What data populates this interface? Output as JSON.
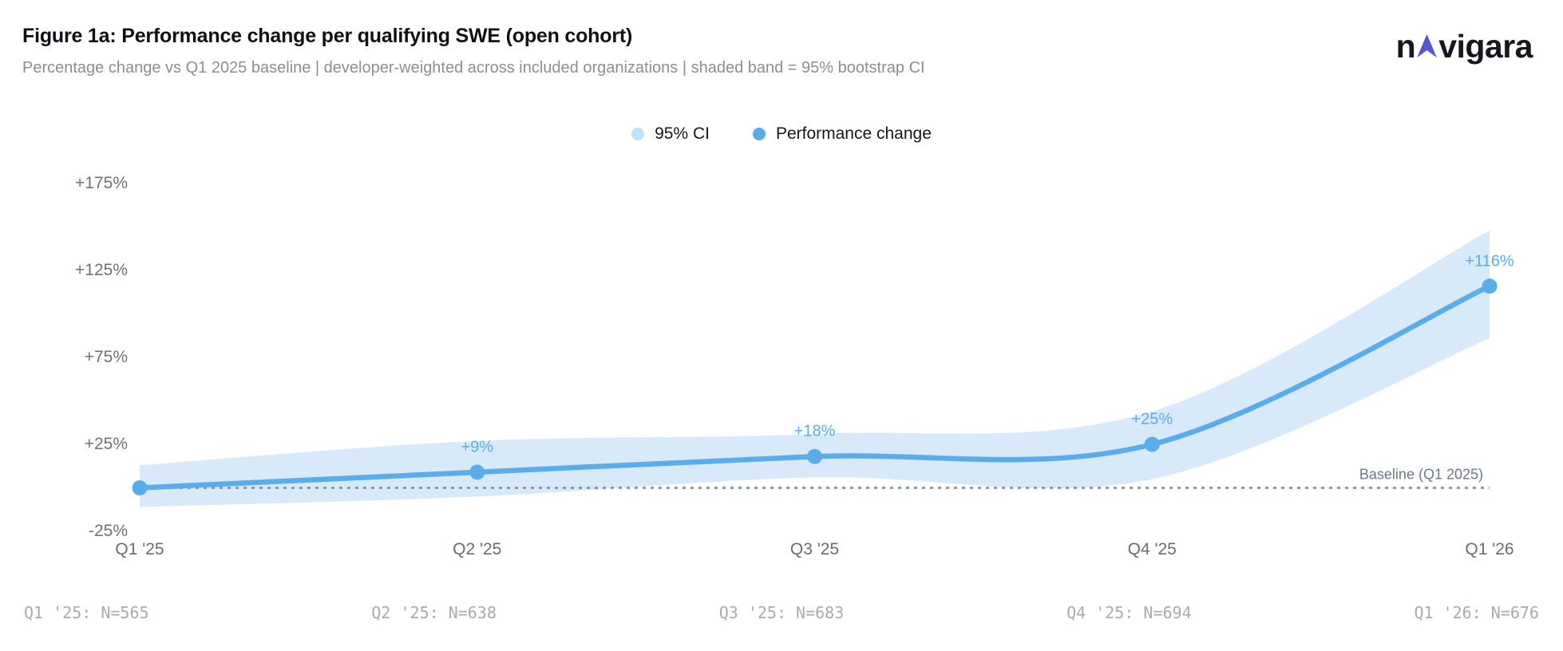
{
  "header": {
    "title": "Figure 1a: Performance change per qualifying SWE (open cohort)",
    "subtitle": "Percentage change vs Q1 2025 baseline | developer-weighted across included organizations | shaded band = 95% bootstrap CI",
    "logo": {
      "prefix": "n",
      "suffix": "vigara",
      "text_color": "#17171f",
      "arrow_color": "#5655d6"
    }
  },
  "legend": {
    "items": [
      {
        "label": "95% CI",
        "swatch_color": "#bee0f8"
      },
      {
        "label": "Performance change",
        "swatch_color": "#59adec"
      }
    ]
  },
  "chart_data": {
    "type": "line",
    "title": "Figure 1a: Performance change per qualifying SWE (open cohort)",
    "subtitle": "Percentage change vs Q1 2025 baseline | developer-weighted across included organizations | shaded band = 95% bootstrap CI",
    "categories": [
      "Q1 '25",
      "Q2 '25",
      "Q3 '25",
      "Q4 '25",
      "Q1 '26"
    ],
    "series": [
      {
        "name": "Performance change",
        "values": [
          0,
          9,
          18,
          25,
          116
        ]
      }
    ],
    "ci_high": [
      13,
      27,
      31,
      44,
      148
    ],
    "ci_low": [
      -11,
      -5,
      6,
      5,
      86
    ],
    "point_labels": [
      "",
      "+9%",
      "+18%",
      "+25%",
      "+116%"
    ],
    "sample_sizes": [
      565,
      638,
      683,
      694,
      676
    ],
    "y_ticks": [
      {
        "label": "+175%",
        "value": 175
      },
      {
        "label": "+125%",
        "value": 125
      },
      {
        "label": "+75%",
        "value": 75
      },
      {
        "label": "+25%",
        "value": 25
      },
      {
        "label": "-25%",
        "value": -25
      }
    ],
    "ylim": [
      -25,
      175
    ],
    "xlabel": "",
    "ylabel": "",
    "grid": false,
    "legend_position": "top-center",
    "baseline_label": "Baseline (Q1 2025)",
    "baseline_value": 0,
    "colors": {
      "line": "#59adec",
      "point": "#59adec",
      "band": "#d8eaf9",
      "baseline": "#8190a3",
      "point_label": "#59adec"
    }
  },
  "footer": {
    "items": [
      "Q1 '25: N=565",
      "Q2 '25: N=638",
      "Q3 '25: N=683",
      "Q4 '25: N=694",
      "Q1 '26: N=676"
    ]
  }
}
